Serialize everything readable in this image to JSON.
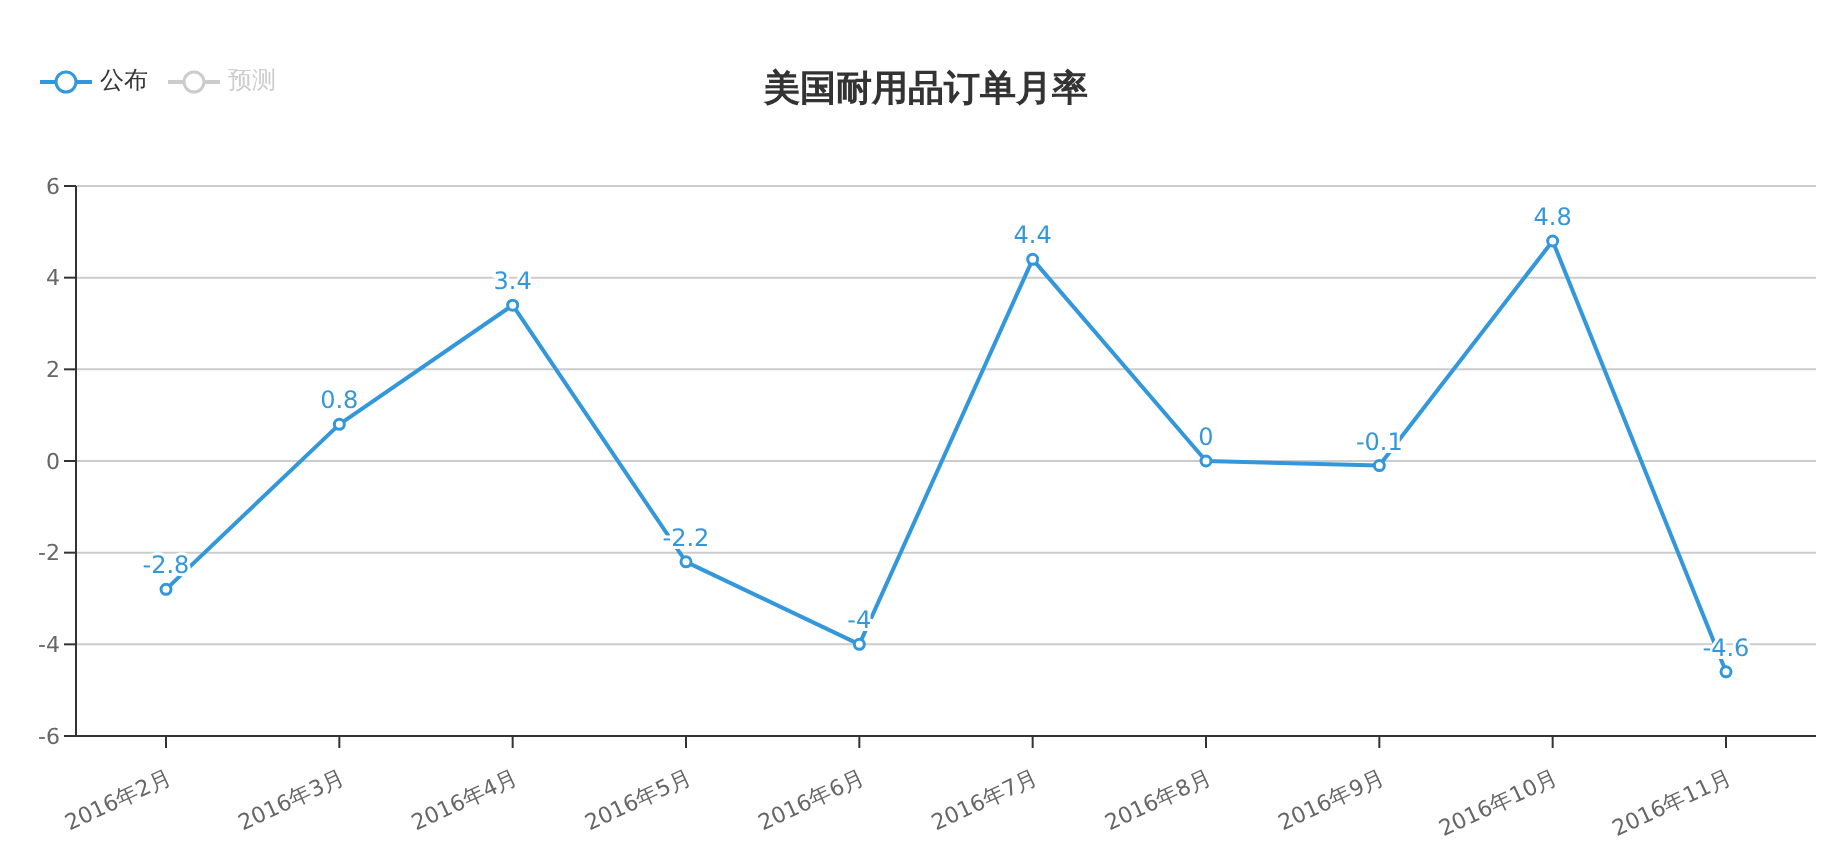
{
  "chart_data": {
    "type": "line",
    "title": "美国耐用品订单月率",
    "categories": [
      "2016年2月",
      "2016年3月",
      "2016年4月",
      "2016年5月",
      "2016年6月",
      "2016年7月",
      "2016年8月",
      "2016年9月",
      "2016年10月",
      "2016年11月"
    ],
    "series": [
      {
        "name": "公布",
        "color": "#3398db",
        "values": [
          -2.8,
          0.8,
          3.4,
          -2.2,
          -4,
          4.4,
          0,
          -0.1,
          4.8,
          -4.6
        ]
      },
      {
        "name": "预测",
        "color": "#cccccc",
        "values": [
          null,
          null,
          null,
          null,
          null,
          null,
          null,
          null,
          null,
          null
        ]
      }
    ],
    "ylim": [
      -6,
      6
    ],
    "yticks": [
      -6,
      -4,
      -2,
      0,
      2,
      4,
      6
    ],
    "grid": "y",
    "legend": "top left",
    "marker": "circle",
    "line_style": "solid",
    "data_labels": true
  }
}
